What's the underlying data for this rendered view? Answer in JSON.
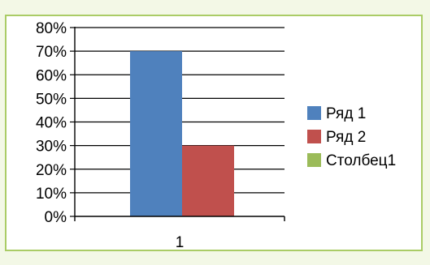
{
  "chart_data": {
    "type": "bar",
    "categories": [
      "1"
    ],
    "series": [
      {
        "name": "Ряд 1",
        "values": [
          70
        ],
        "color": "#4f81bd"
      },
      {
        "name": "Ряд 2",
        "values": [
          30
        ],
        "color": "#c0504d"
      },
      {
        "name": "Столбец1",
        "values": [
          null
        ],
        "color": "#9bbb59"
      }
    ],
    "y_ticks": [
      "0%",
      "10%",
      "20%",
      "30%",
      "40%",
      "50%",
      "60%",
      "70%",
      "80%"
    ],
    "ylim": [
      0,
      80
    ],
    "y_unit": "%",
    "grid": true,
    "legend_position": "right",
    "title": "",
    "xlabel": "",
    "ylabel": ""
  },
  "colors": {
    "page_background": "#f3f8e6",
    "frame_border": "#aacc66",
    "chart_background": "#ffffff"
  }
}
